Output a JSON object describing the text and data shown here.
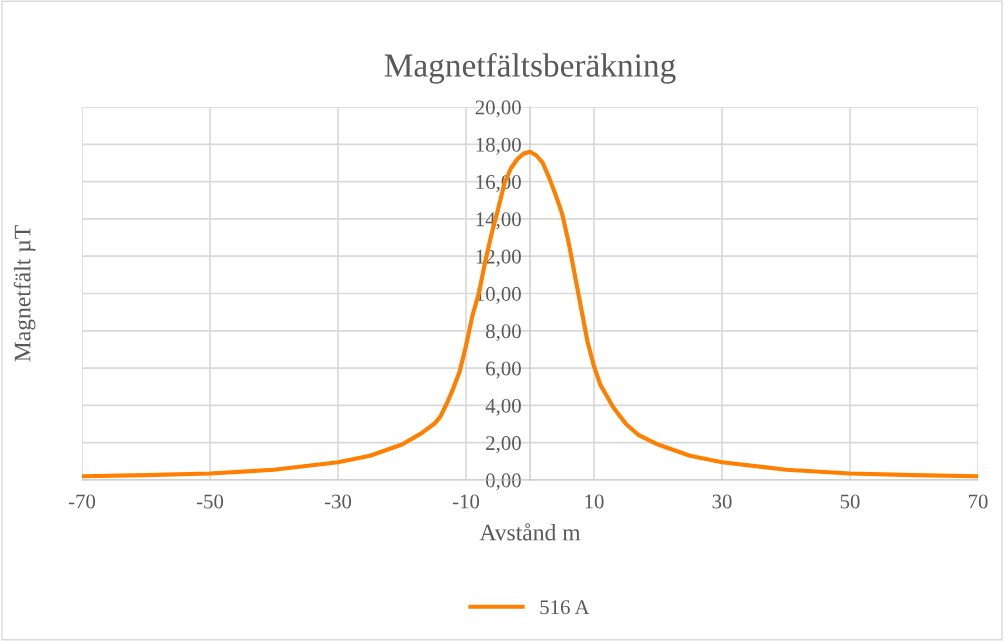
{
  "chart_data": {
    "type": "line",
    "title": "Magnetfältsberäkning",
    "xlabel": "Avstånd m",
    "ylabel": "Magnetfält µT",
    "series": [
      {
        "name": "516 A",
        "color": "#ff8000",
        "x": [
          -70,
          -60,
          -50,
          -40,
          -30,
          -25,
          -20,
          -17,
          -15,
          -14,
          -13,
          -12,
          -11,
          -10,
          -9,
          -8,
          -7,
          -6,
          -5,
          -4,
          -3,
          -2,
          -1,
          0,
          1,
          2,
          3,
          4,
          5,
          6,
          7,
          8,
          9,
          10,
          11,
          12,
          13,
          15,
          17,
          20,
          25,
          30,
          40,
          50,
          60,
          70
        ],
        "values": [
          0.2,
          0.26,
          0.35,
          0.55,
          0.95,
          1.3,
          1.9,
          2.5,
          3.0,
          3.4,
          4.1,
          4.9,
          5.8,
          7.2,
          8.8,
          10.0,
          11.7,
          13.2,
          14.5,
          15.9,
          16.7,
          17.2,
          17.5,
          17.6,
          17.4,
          17.0,
          16.2,
          15.3,
          14.3,
          12.8,
          11.0,
          9.2,
          7.4,
          6.1,
          5.1,
          4.5,
          3.9,
          3.0,
          2.4,
          1.9,
          1.3,
          0.95,
          0.55,
          0.35,
          0.26,
          0.2
        ]
      }
    ],
    "xlim": [
      -70,
      70
    ],
    "xticks": [
      -70,
      -50,
      -30,
      -10,
      10,
      30,
      50,
      70
    ],
    "ylim": [
      0,
      20
    ],
    "yticks": [
      {
        "value": 0,
        "label": "0,00"
      },
      {
        "value": 2,
        "label": "2,00"
      },
      {
        "value": 4,
        "label": "4,00"
      },
      {
        "value": 6,
        "label": "6,00"
      },
      {
        "value": 8,
        "label": "8,00"
      },
      {
        "value": 10,
        "label": "10,00"
      },
      {
        "value": 12,
        "label": "12,00"
      },
      {
        "value": 14,
        "label": "14,00"
      },
      {
        "value": 16,
        "label": "16,00"
      },
      {
        "value": 18,
        "label": "18,00"
      },
      {
        "value": 20,
        "label": "20,00"
      }
    ],
    "grid": true,
    "legend": "bottom",
    "marker": "none",
    "line_style": "solid"
  }
}
